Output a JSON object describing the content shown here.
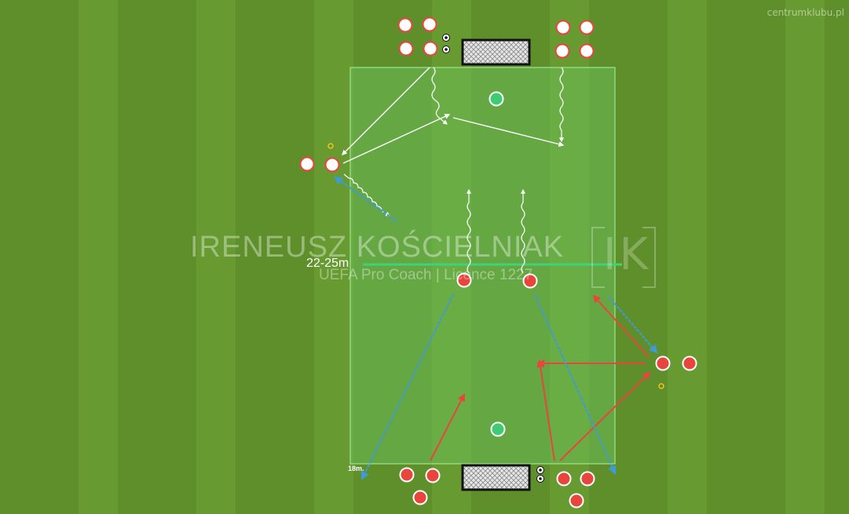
{
  "brand": "centrumklubu.pl",
  "watermark": {
    "name": "IRENEUSZ KOŚCIELNIAK",
    "subtitle": "UEFA Pro Coach  |  Licence 1227",
    "logo": "IK"
  },
  "labels": {
    "distance": "22-25m",
    "mark": "18m."
  },
  "colors": {
    "grass": "#5e8f2a",
    "zone": "#6fc55f",
    "white_team": "#ffffff",
    "red_team": "#e8453c",
    "keeper": "#3ecb75",
    "pass_white": "#ffffff",
    "pass_red": "#e8453c",
    "run_blue": "#3f9ad6"
  },
  "icons": [
    "ball-icon",
    "cone-icon",
    "goal-icon",
    "player-icon",
    "goalkeeper-icon"
  ]
}
